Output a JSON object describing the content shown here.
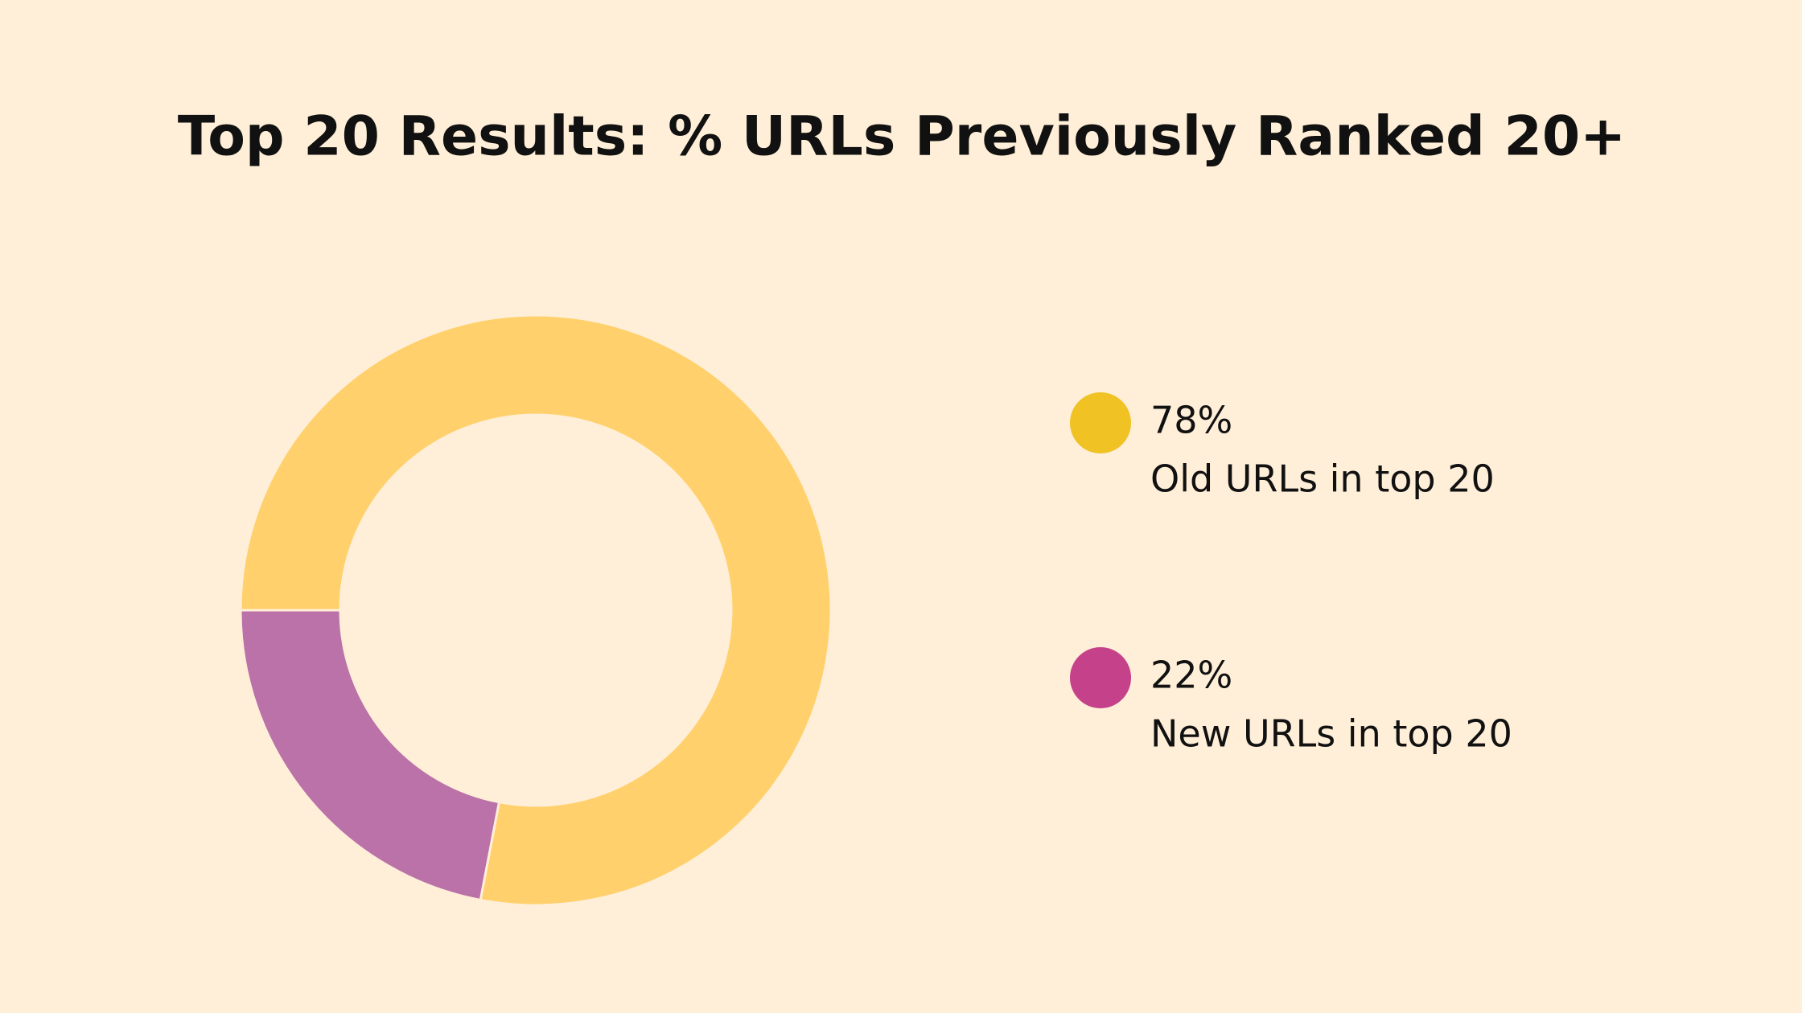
{
  "chart_data": {
    "type": "pie",
    "title": "Top 20 Results: % URLs Previously Ranked 20+",
    "series": [
      {
        "name": "Old URLs in top 20",
        "color": "#FFD06B",
        "legend_color": "#F0C224",
        "values": [
          78
        ],
        "value_labels": [
          "78%"
        ]
      },
      {
        "name": "New URLs in top 20",
        "color": "#BA72A8",
        "legend_color": "#C5418A",
        "values": [
          22
        ],
        "value_labels": [
          "22%"
        ]
      }
    ],
    "donut": true
  }
}
